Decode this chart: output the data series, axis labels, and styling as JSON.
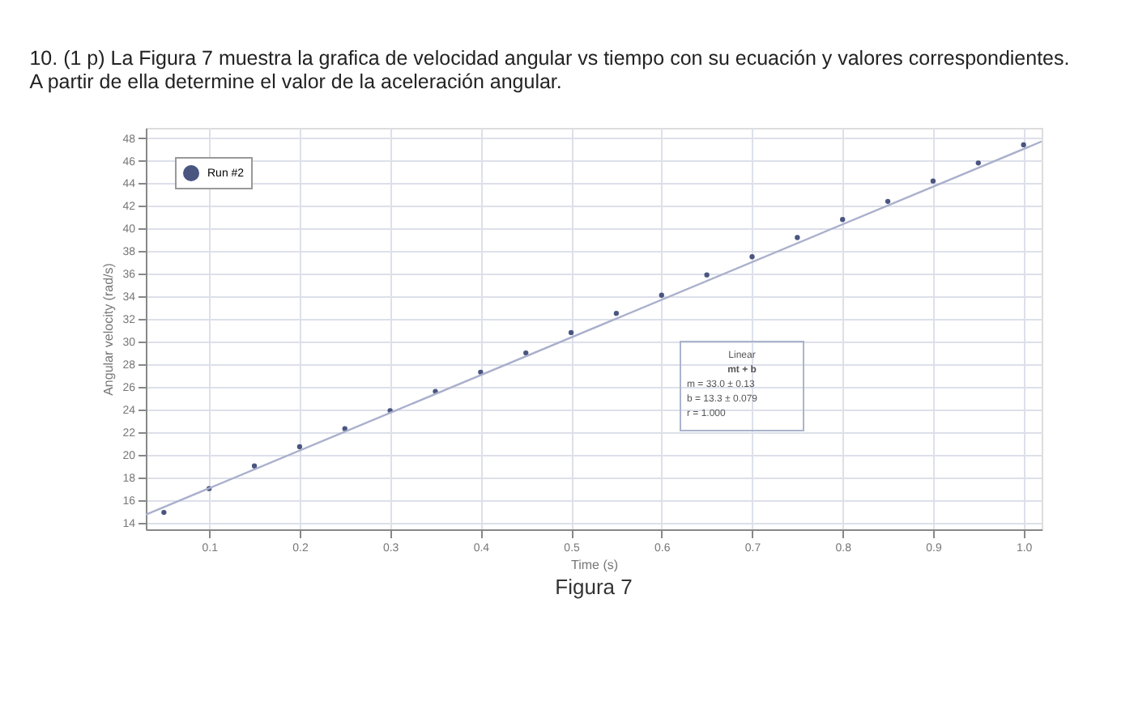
{
  "chart_data": {
    "type": "scatter",
    "title": [
      "10. (1 p) La Figura 7 muestra la grafica de velocidad angular vs tiempo con su ecuación y valores correspondientes.",
      "A partir de ella determine el valor de la aceleración angular."
    ],
    "xlabel": "Time (s)",
    "ylabel": "Angular velocity (rad/s)",
    "x": [
      0.05,
      0.1,
      0.15,
      0.2,
      0.25,
      0.3,
      0.35,
      0.4,
      0.45,
      0.5,
      0.55,
      0.6,
      0.65,
      0.7,
      0.75,
      0.8,
      0.85,
      0.9,
      0.95,
      1.0
    ],
    "series": [
      {
        "name": "Run #2",
        "color": "#4a5680",
        "marker": "circle",
        "values": [
          14.9,
          17.0,
          19.0,
          20.7,
          22.3,
          23.9,
          25.6,
          27.3,
          29.0,
          30.8,
          32.5,
          34.1,
          35.9,
          37.5,
          39.2,
          40.8,
          42.4,
          44.2,
          45.8,
          47.4
        ]
      },
      {
        "type": "line",
        "color": "#aab0cc",
        "x": [
          0.03,
          1.02
        ],
        "values": [
          14.7,
          47.7
        ],
        "line_style": "solid"
      }
    ],
    "xlim": [
      0.03,
      1.02
    ],
    "ylim": [
      13.4,
      48.9
    ],
    "xticks": [
      0.1,
      0.2,
      0.3,
      0.4,
      0.5,
      0.6,
      0.7,
      0.8,
      0.9,
      {
        "value": 1.0,
        "label": "1.0"
      }
    ],
    "yticks": [
      14,
      16,
      18,
      20,
      22,
      24,
      26,
      28,
      30,
      32,
      34,
      36,
      38,
      40,
      42,
      44,
      46,
      48
    ],
    "grid": true,
    "legend": "top left",
    "annotations": [
      "Linear",
      "mt + b",
      "m = 33.0 ± 0.13",
      "b = 13.3 ± 0.079",
      "r = 1.000",
      "Figura 7"
    ]
  }
}
